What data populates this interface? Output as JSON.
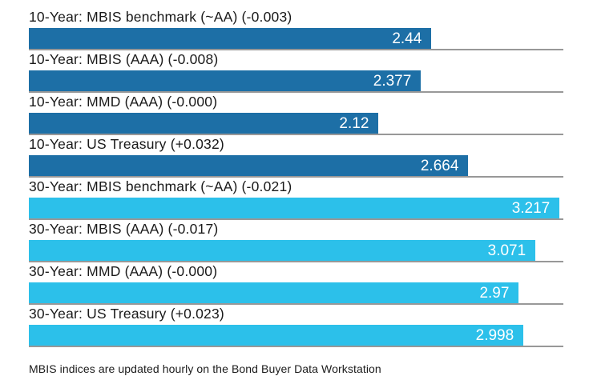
{
  "chart_data": {
    "type": "bar",
    "orientation": "horizontal",
    "title": "",
    "xlabel": "",
    "ylabel": "",
    "xlim": [
      0,
      3.24
    ],
    "grid": false,
    "legend": false,
    "value_labels_position": "inside-end",
    "colors": {
      "ten_year_bar": "#1d6fa6",
      "thirty_year_bar": "#2cc0ea",
      "baseline": "#989898",
      "label_text": "#1a1a1a",
      "value_text": "#ffffff"
    },
    "bars": [
      {
        "label": "10-Year: MBIS benchmark (~AA) (-0.003)",
        "value": 2.44,
        "value_label": "2.44",
        "change": "-0.003",
        "group": "10-Year",
        "color": "#1d6fa6"
      },
      {
        "label": "10-Year: MBIS (AAA) (-0.008)",
        "value": 2.377,
        "value_label": "2.377",
        "change": "-0.008",
        "group": "10-Year",
        "color": "#1d6fa6"
      },
      {
        "label": "10-Year: MMD (AAA) (-0.000)",
        "value": 2.12,
        "value_label": "2.12",
        "change": "-0.000",
        "group": "10-Year",
        "color": "#1d6fa6"
      },
      {
        "label": "10-Year: US Treasury (+0.032)",
        "value": 2.664,
        "value_label": "2.664",
        "change": "+0.032",
        "group": "10-Year",
        "color": "#1d6fa6"
      },
      {
        "label": "30-Year: MBIS benchmark (~AA) (-0.021)",
        "value": 3.217,
        "value_label": "3.217",
        "change": "-0.021",
        "group": "30-Year",
        "color": "#2cc0ea"
      },
      {
        "label": "30-Year: MBIS (AAA) (-0.017)",
        "value": 3.071,
        "value_label": "3.071",
        "change": "-0.017",
        "group": "30-Year",
        "color": "#2cc0ea"
      },
      {
        "label": "30-Year: MMD (AAA) (-0.000)",
        "value": 2.97,
        "value_label": "2.97",
        "change": "-0.000",
        "group": "30-Year",
        "color": "#2cc0ea"
      },
      {
        "label": "30-Year: US Treasury (+0.023)",
        "value": 2.998,
        "value_label": "2.998",
        "change": "+0.023",
        "group": "30-Year",
        "color": "#2cc0ea"
      }
    ],
    "footnote": "MBIS indices are updated hourly on the Bond Buyer Data Workstation"
  }
}
